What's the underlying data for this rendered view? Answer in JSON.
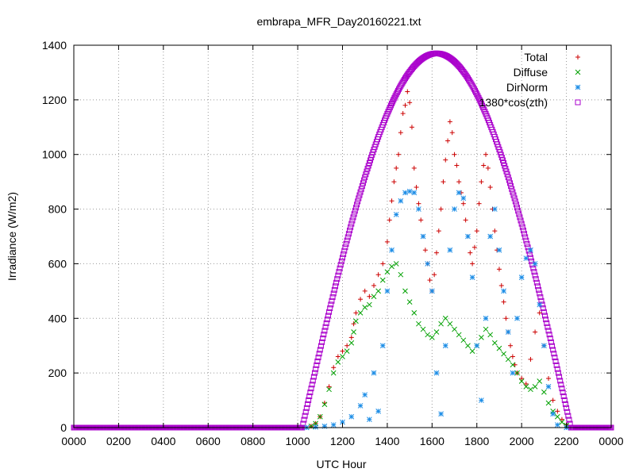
{
  "chart_data": {
    "type": "scatter",
    "title": "embrapa_MFR_Day20160221.txt",
    "xlabel": "UTC Hour",
    "ylabel": "Irradiance (W/m2)",
    "xlim": [
      0,
      24
    ],
    "ylim": [
      0,
      1400
    ],
    "grid": true,
    "legend_placement": "top-right",
    "x_ticks": [
      {
        "value": 0,
        "label": "0000"
      },
      {
        "value": 2,
        "label": "0200"
      },
      {
        "value": 4,
        "label": "0400"
      },
      {
        "value": 6,
        "label": "0600"
      },
      {
        "value": 8,
        "label": "0800"
      },
      {
        "value": 10,
        "label": "1000"
      },
      {
        "value": 12,
        "label": "1200"
      },
      {
        "value": 14,
        "label": "1400"
      },
      {
        "value": 16,
        "label": "1600"
      },
      {
        "value": 18,
        "label": "1800"
      },
      {
        "value": 20,
        "label": "2000"
      },
      {
        "value": 22,
        "label": "2200"
      },
      {
        "value": 24,
        "label": "0000"
      }
    ],
    "y_ticks": [
      0,
      200,
      400,
      600,
      800,
      1000,
      1200,
      1400
    ],
    "series": [
      {
        "name": "Total",
        "marker": "plus",
        "color": "#cc0000",
        "points": [
          [
            10.6,
            5
          ],
          [
            10.8,
            15
          ],
          [
            11.0,
            40
          ],
          [
            11.2,
            90
          ],
          [
            11.4,
            150
          ],
          [
            11.6,
            220
          ],
          [
            11.8,
            260
          ],
          [
            12.0,
            280
          ],
          [
            12.2,
            300
          ],
          [
            12.4,
            330
          ],
          [
            12.5,
            380
          ],
          [
            12.6,
            420
          ],
          [
            12.8,
            470
          ],
          [
            13.0,
            500
          ],
          [
            13.2,
            480
          ],
          [
            13.4,
            520
          ],
          [
            13.6,
            560
          ],
          [
            13.8,
            600
          ],
          [
            14.0,
            680
          ],
          [
            14.1,
            760
          ],
          [
            14.2,
            830
          ],
          [
            14.3,
            900
          ],
          [
            14.4,
            950
          ],
          [
            14.5,
            1000
          ],
          [
            14.6,
            1080
          ],
          [
            14.7,
            1150
          ],
          [
            14.8,
            1180
          ],
          [
            14.9,
            1230
          ],
          [
            15.0,
            1190
          ],
          [
            15.1,
            1100
          ],
          [
            15.2,
            950
          ],
          [
            15.3,
            880
          ],
          [
            15.4,
            820
          ],
          [
            15.5,
            760
          ],
          [
            15.6,
            700
          ],
          [
            15.7,
            650
          ],
          [
            15.8,
            600
          ],
          [
            15.9,
            540
          ],
          [
            16.0,
            500
          ],
          [
            16.1,
            560
          ],
          [
            16.2,
            640
          ],
          [
            16.3,
            720
          ],
          [
            16.4,
            800
          ],
          [
            16.5,
            900
          ],
          [
            16.6,
            980
          ],
          [
            16.7,
            1050
          ],
          [
            16.8,
            1120
          ],
          [
            16.9,
            1080
          ],
          [
            17.0,
            1000
          ],
          [
            17.1,
            960
          ],
          [
            17.2,
            900
          ],
          [
            17.3,
            860
          ],
          [
            17.4,
            820
          ],
          [
            17.5,
            760
          ],
          [
            17.6,
            700
          ],
          [
            17.7,
            640
          ],
          [
            17.8,
            600
          ],
          [
            17.9,
            660
          ],
          [
            18.0,
            720
          ],
          [
            18.1,
            820
          ],
          [
            18.2,
            900
          ],
          [
            18.3,
            960
          ],
          [
            18.4,
            1000
          ],
          [
            18.5,
            950
          ],
          [
            18.6,
            880
          ],
          [
            18.7,
            800
          ],
          [
            18.8,
            720
          ],
          [
            18.9,
            650
          ],
          [
            19.0,
            580
          ],
          [
            19.1,
            520
          ],
          [
            19.2,
            460
          ],
          [
            19.3,
            400
          ],
          [
            19.4,
            350
          ],
          [
            19.5,
            300
          ],
          [
            19.6,
            260
          ],
          [
            19.7,
            230
          ],
          [
            19.8,
            200
          ],
          [
            20.0,
            180
          ],
          [
            20.2,
            160
          ],
          [
            20.4,
            250
          ],
          [
            20.6,
            350
          ],
          [
            20.8,
            420
          ],
          [
            21.0,
            300
          ],
          [
            21.2,
            180
          ],
          [
            21.4,
            100
          ],
          [
            21.6,
            60
          ],
          [
            21.8,
            30
          ],
          [
            22.0,
            10
          ]
        ]
      },
      {
        "name": "Diffuse",
        "marker": "cross",
        "color": "#00a000",
        "points": [
          [
            10.6,
            5
          ],
          [
            10.8,
            15
          ],
          [
            11.0,
            40
          ],
          [
            11.2,
            85
          ],
          [
            11.4,
            140
          ],
          [
            11.6,
            200
          ],
          [
            11.8,
            240
          ],
          [
            12.0,
            260
          ],
          [
            12.2,
            280
          ],
          [
            12.4,
            310
          ],
          [
            12.5,
            350
          ],
          [
            12.6,
            390
          ],
          [
            12.8,
            420
          ],
          [
            13.0,
            440
          ],
          [
            13.2,
            450
          ],
          [
            13.4,
            480
          ],
          [
            13.6,
            500
          ],
          [
            13.8,
            540
          ],
          [
            14.0,
            570
          ],
          [
            14.2,
            590
          ],
          [
            14.4,
            600
          ],
          [
            14.6,
            560
          ],
          [
            14.8,
            500
          ],
          [
            15.0,
            460
          ],
          [
            15.2,
            420
          ],
          [
            15.4,
            380
          ],
          [
            15.6,
            360
          ],
          [
            15.8,
            340
          ],
          [
            16.0,
            330
          ],
          [
            16.2,
            350
          ],
          [
            16.4,
            380
          ],
          [
            16.6,
            400
          ],
          [
            16.8,
            380
          ],
          [
            17.0,
            360
          ],
          [
            17.2,
            340
          ],
          [
            17.4,
            320
          ],
          [
            17.6,
            300
          ],
          [
            17.8,
            280
          ],
          [
            18.0,
            300
          ],
          [
            18.2,
            330
          ],
          [
            18.4,
            360
          ],
          [
            18.6,
            340
          ],
          [
            18.8,
            310
          ],
          [
            19.0,
            290
          ],
          [
            19.2,
            270
          ],
          [
            19.4,
            250
          ],
          [
            19.6,
            230
          ],
          [
            19.8,
            200
          ],
          [
            20.0,
            170
          ],
          [
            20.2,
            150
          ],
          [
            20.4,
            140
          ],
          [
            20.6,
            150
          ],
          [
            20.8,
            170
          ],
          [
            21.0,
            130
          ],
          [
            21.2,
            90
          ],
          [
            21.4,
            60
          ],
          [
            21.6,
            40
          ],
          [
            21.8,
            20
          ],
          [
            22.0,
            8
          ]
        ]
      },
      {
        "name": "DirNorm",
        "marker": "star",
        "color": "#1a8ce6",
        "points": [
          [
            10.4,
            0
          ],
          [
            10.8,
            2
          ],
          [
            11.2,
            5
          ],
          [
            11.6,
            10
          ],
          [
            12.0,
            20
          ],
          [
            12.4,
            40
          ],
          [
            12.8,
            80
          ],
          [
            13.0,
            120
          ],
          [
            13.2,
            30
          ],
          [
            13.4,
            200
          ],
          [
            13.6,
            60
          ],
          [
            13.8,
            300
          ],
          [
            14.0,
            500
          ],
          [
            14.2,
            650
          ],
          [
            14.4,
            780
          ],
          [
            14.6,
            830
          ],
          [
            14.8,
            860
          ],
          [
            15.0,
            865
          ],
          [
            15.2,
            860
          ],
          [
            15.4,
            800
          ],
          [
            15.6,
            700
          ],
          [
            15.8,
            600
          ],
          [
            16.0,
            500
          ],
          [
            16.2,
            200
          ],
          [
            16.4,
            50
          ],
          [
            16.6,
            300
          ],
          [
            16.8,
            650
          ],
          [
            17.0,
            800
          ],
          [
            17.2,
            860
          ],
          [
            17.4,
            840
          ],
          [
            17.6,
            700
          ],
          [
            17.8,
            550
          ],
          [
            18.0,
            300
          ],
          [
            18.2,
            100
          ],
          [
            18.4,
            400
          ],
          [
            18.6,
            700
          ],
          [
            18.8,
            800
          ],
          [
            19.0,
            650
          ],
          [
            19.2,
            500
          ],
          [
            19.4,
            350
          ],
          [
            19.6,
            200
          ],
          [
            19.8,
            400
          ],
          [
            20.0,
            550
          ],
          [
            20.2,
            620
          ],
          [
            20.4,
            650
          ],
          [
            20.6,
            600
          ],
          [
            20.8,
            450
          ],
          [
            21.0,
            300
          ],
          [
            21.2,
            150
          ],
          [
            21.4,
            50
          ],
          [
            21.6,
            10
          ],
          [
            22.0,
            0
          ]
        ]
      },
      {
        "name": "1380*cos(zth)",
        "marker": "square",
        "color": "#aa00cc",
        "peak": 1370,
        "sunrise": 10.2,
        "sunset": 22.2,
        "solar_noon": 16.2
      }
    ]
  }
}
